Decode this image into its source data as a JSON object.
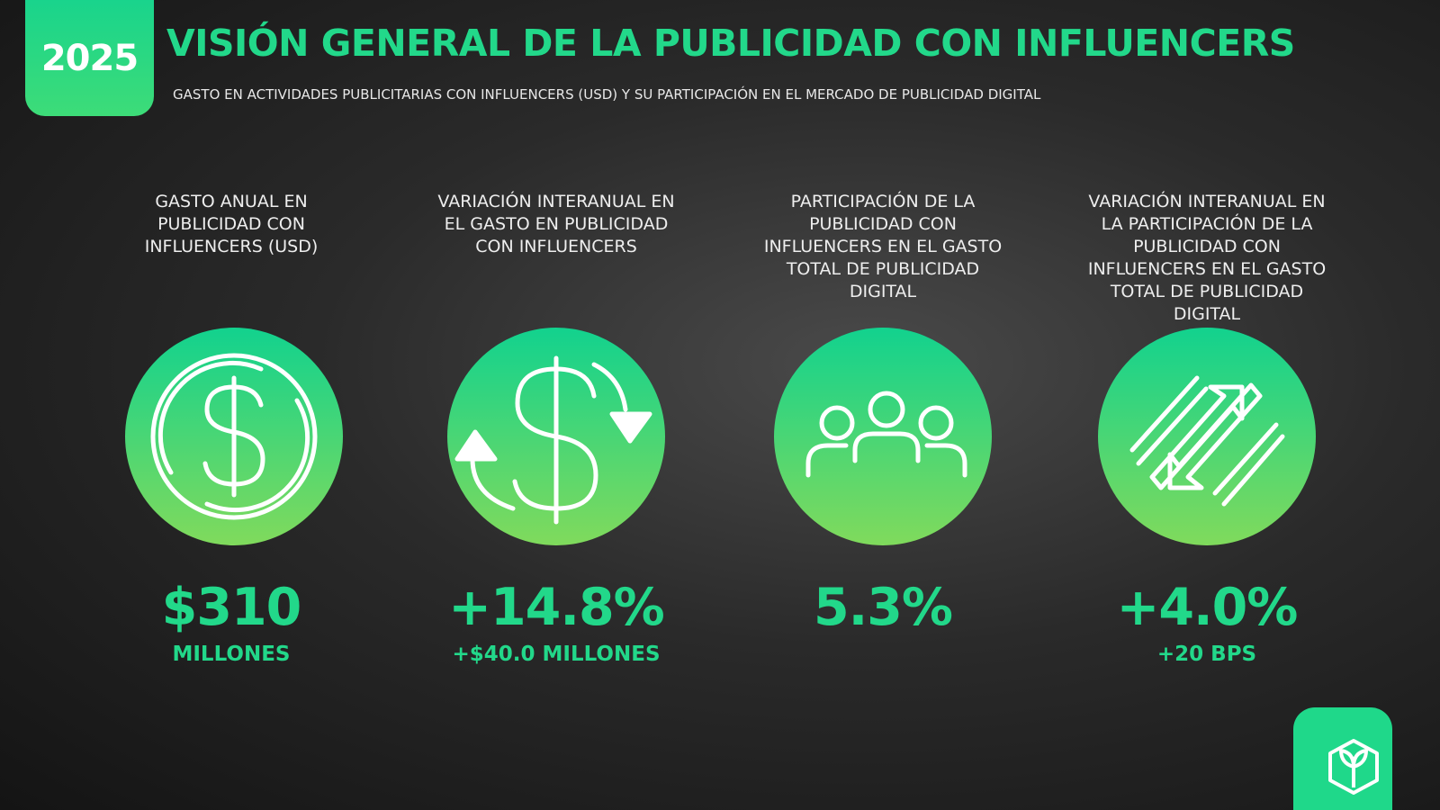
{
  "header": {
    "year": "2025",
    "title": "VISIÓN GENERAL DE LA PUBLICIDAD CON INFLUENCERS",
    "subtitle": "GASTO EN ACTIVIDADES PUBLICITARIAS CON INFLUENCERS (USD) Y SU PARTICIPACIÓN EN EL MERCADO DE PUBLICIDAD DIGITAL"
  },
  "stats": [
    {
      "label": "GASTO ANUAL EN PUBLICIDAD CON INFLUENCERS (USD)",
      "value": "$310",
      "detail": "MILLONES"
    },
    {
      "label": "VARIACIÓN INTERANUAL EN EL GASTO EN PUBLICIDAD CON INFLUENCERS",
      "value": "+14.8%",
      "detail": "+$40.0 MILLONES"
    },
    {
      "label": "PARTICIPACIÓN DE LA PUBLICIDAD CON INFLUENCERS EN EL GASTO TOTAL DE PUBLICIDAD DIGITAL",
      "value": "5.3%"
    },
    {
      "label": "VARIACIÓN INTERANUAL EN LA PARTICIPACIÓN DE LA PUBLICIDAD CON INFLUENCERS EN EL GASTO TOTAL DE PUBLICIDAD DIGITAL",
      "value": "+4.0%",
      "detail": "+20 BPS"
    }
  ]
}
